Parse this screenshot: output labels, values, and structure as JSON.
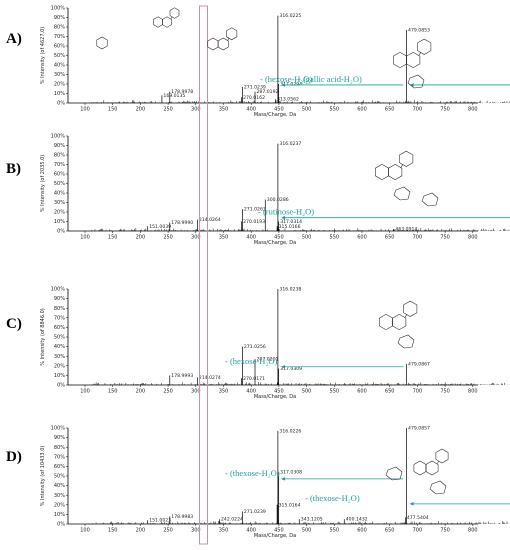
{
  "chart_data": [
    {
      "panel_label": "A)",
      "type": "bar",
      "xlabel": "Mass/Charge, Da",
      "ylabel": "% Intensity (of 4627.0)",
      "xlim": [
        50,
        650
      ],
      "ylim": [
        0,
        100
      ],
      "x_ticks": [
        "100",
        "150",
        "200",
        "250",
        "300",
        "350",
        "400",
        "450",
        "500",
        "550",
        "600",
        "650",
        "700",
        "750",
        "800"
      ],
      "y_ticks": [
        "0%",
        "10%",
        "20%",
        "30%",
        "40%",
        "50%",
        "60%",
        "70%",
        "80%",
        "90%",
        "100%"
      ],
      "peaks": [
        {
          "mz": 169.0135,
          "intensity": 8,
          "label": "169.0135"
        },
        {
          "mz": 178.9978,
          "intensity": 12,
          "label": "178.9978"
        },
        {
          "mz": 270.0162,
          "intensity": 6,
          "label": "270.0162"
        },
        {
          "mz": 271.0239,
          "intensity": 17,
          "label": "271.0239"
        },
        {
          "mz": 287.0192,
          "intensity": 12,
          "label": "287.0192"
        },
        {
          "mz": 313.0562,
          "intensity": 4,
          "label": "313.0562"
        },
        {
          "mz": 316.0225,
          "intensity": 92,
          "label": "316.0225"
        },
        {
          "mz": 317.0294,
          "intensity": 20,
          "label": "317.0294"
        },
        {
          "mz": 479.0853,
          "intensity": 77,
          "label": "479.0853"
        },
        {
          "mz": 631.0979,
          "intensity": 33,
          "label": "631.0979"
        }
      ],
      "losses": [
        "- (hexose-H₂O)",
        "- (gallic acid-H₂O)"
      ],
      "annotations": {
        "mz_small": "m/z 169.0135"
      }
    },
    {
      "panel_label": "B)",
      "type": "bar",
      "xlabel": "Mass/Charge, Da",
      "ylabel": "% Intensity (of 2035.0)",
      "xlim": [
        50,
        650
      ],
      "ylim": [
        0,
        100
      ],
      "x_ticks": [
        "100",
        "150",
        "200",
        "250",
        "300",
        "350",
        "400",
        "450",
        "500",
        "550",
        "600",
        "650",
        "700",
        "750",
        "800"
      ],
      "y_ticks": [
        "0%",
        "10%",
        "20%",
        "30%",
        "40%",
        "50%",
        "60%",
        "70%",
        "80%",
        "90%",
        "100%"
      ],
      "peaks": [
        {
          "mz": 151.0039,
          "intensity": 5,
          "label": "151.0039"
        },
        {
          "mz": 178.999,
          "intensity": 9,
          "label": "178.9990"
        },
        {
          "mz": 214.0264,
          "intensity": 12,
          "label": "214.0264"
        },
        {
          "mz": 270.0193,
          "intensity": 10,
          "label": "270.0193"
        },
        {
          "mz": 271.0263,
          "intensity": 23,
          "label": "271.0263"
        },
        {
          "mz": 300.0286,
          "intensity": 33,
          "label": "300.0286"
        },
        {
          "mz": 315.0166,
          "intensity": 5,
          "label": "315.0166"
        },
        {
          "mz": 316.0237,
          "intensity": 92,
          "label": "316.0237"
        },
        {
          "mz": 317.0314,
          "intensity": 10,
          "label": "317.0314"
        },
        {
          "mz": 463.0914,
          "intensity": 2,
          "label": "463.0914"
        },
        {
          "mz": 625.1466,
          "intensity": 100,
          "label": "625.1466"
        }
      ],
      "losses": [
        "- (rutinose-H₂O)"
      ]
    },
    {
      "panel_label": "C)",
      "type": "bar",
      "xlabel": "Mass/Charge, Da",
      "ylabel": "% Intensity (of 8846.0)",
      "xlim": [
        50,
        650
      ],
      "ylim": [
        0,
        100
      ],
      "x_ticks": [
        "100",
        "150",
        "200",
        "250",
        "300",
        "350",
        "400",
        "450",
        "500",
        "550",
        "600",
        "650",
        "700",
        "750",
        "800"
      ],
      "y_ticks": [
        "0%",
        "10%",
        "20%",
        "30%",
        "40%",
        "50%",
        "60%",
        "70%",
        "80%",
        "90%",
        "100%"
      ],
      "peaks": [
        {
          "mz": 178.9993,
          "intensity": 10,
          "label": "178.9993"
        },
        {
          "mz": 214.0274,
          "intensity": 8,
          "label": "214.0274"
        },
        {
          "mz": 270.0171,
          "intensity": 7,
          "label": "270.0171"
        },
        {
          "mz": 271.0256,
          "intensity": 40,
          "label": "271.0256"
        },
        {
          "mz": 287.0201,
          "intensity": 27,
          "label": "287.0201"
        },
        {
          "mz": 316.0238,
          "intensity": 100,
          "label": "316.0238"
        },
        {
          "mz": 317.0309,
          "intensity": 17,
          "label": "317.0309"
        },
        {
          "mz": 479.0867,
          "intensity": 22,
          "label": "479.0867"
        }
      ],
      "losses": [
        "- (hexose-H₂O)"
      ]
    },
    {
      "panel_label": "D)",
      "type": "bar",
      "xlabel": "Mass/Charge, Da",
      "ylabel": "% Intensity (of 10433.0)",
      "xlim": [
        50,
        650
      ],
      "ylim": [
        0,
        100
      ],
      "x_ticks": [
        "100",
        "150",
        "200",
        "250",
        "300",
        "350",
        "400",
        "450",
        "500",
        "550",
        "600",
        "650",
        "700",
        "750",
        "800"
      ],
      "y_ticks": [
        "0%",
        "10%",
        "20%",
        "30%",
        "40%",
        "50%",
        "60%",
        "70%",
        "80%",
        "90%",
        "100%"
      ],
      "peaks": [
        {
          "mz": 151.0023,
          "intensity": 4,
          "label": "151.0023"
        },
        {
          "mz": 178.9983,
          "intensity": 8,
          "label": "178.9983"
        },
        {
          "mz": 242.0224,
          "intensity": 5,
          "label": "242.0224"
        },
        {
          "mz": 271.0239,
          "intensity": 13,
          "label": "271.0239"
        },
        {
          "mz": 315.0164,
          "intensity": 20,
          "label": "315.0164"
        },
        {
          "mz": 316.0226,
          "intensity": 97,
          "label": "316.0226"
        },
        {
          "mz": 317.0308,
          "intensity": 54,
          "label": "317.0308"
        },
        {
          "mz": 343.1205,
          "intensity": 5,
          "label": "343.1205"
        },
        {
          "mz": 400.1432,
          "intensity": 5,
          "label": "400.1432"
        },
        {
          "mz": 477.5404,
          "intensity": 7,
          "label": "477.5404"
        },
        {
          "mz": 479.0857,
          "intensity": 100,
          "label": "479.0857"
        },
        {
          "mz": 641.1404,
          "intensity": 10,
          "label": "641.1404"
        }
      ],
      "losses": [
        "- (thexose-H₂O)",
        "- (thexose-H₂O)"
      ]
    }
  ],
  "colors": {
    "loss_teal": "#1aa39a",
    "highlight_box": "#d78ab0",
    "struct_green": "#33a36a",
    "struct_magenta": "#a0309a"
  }
}
